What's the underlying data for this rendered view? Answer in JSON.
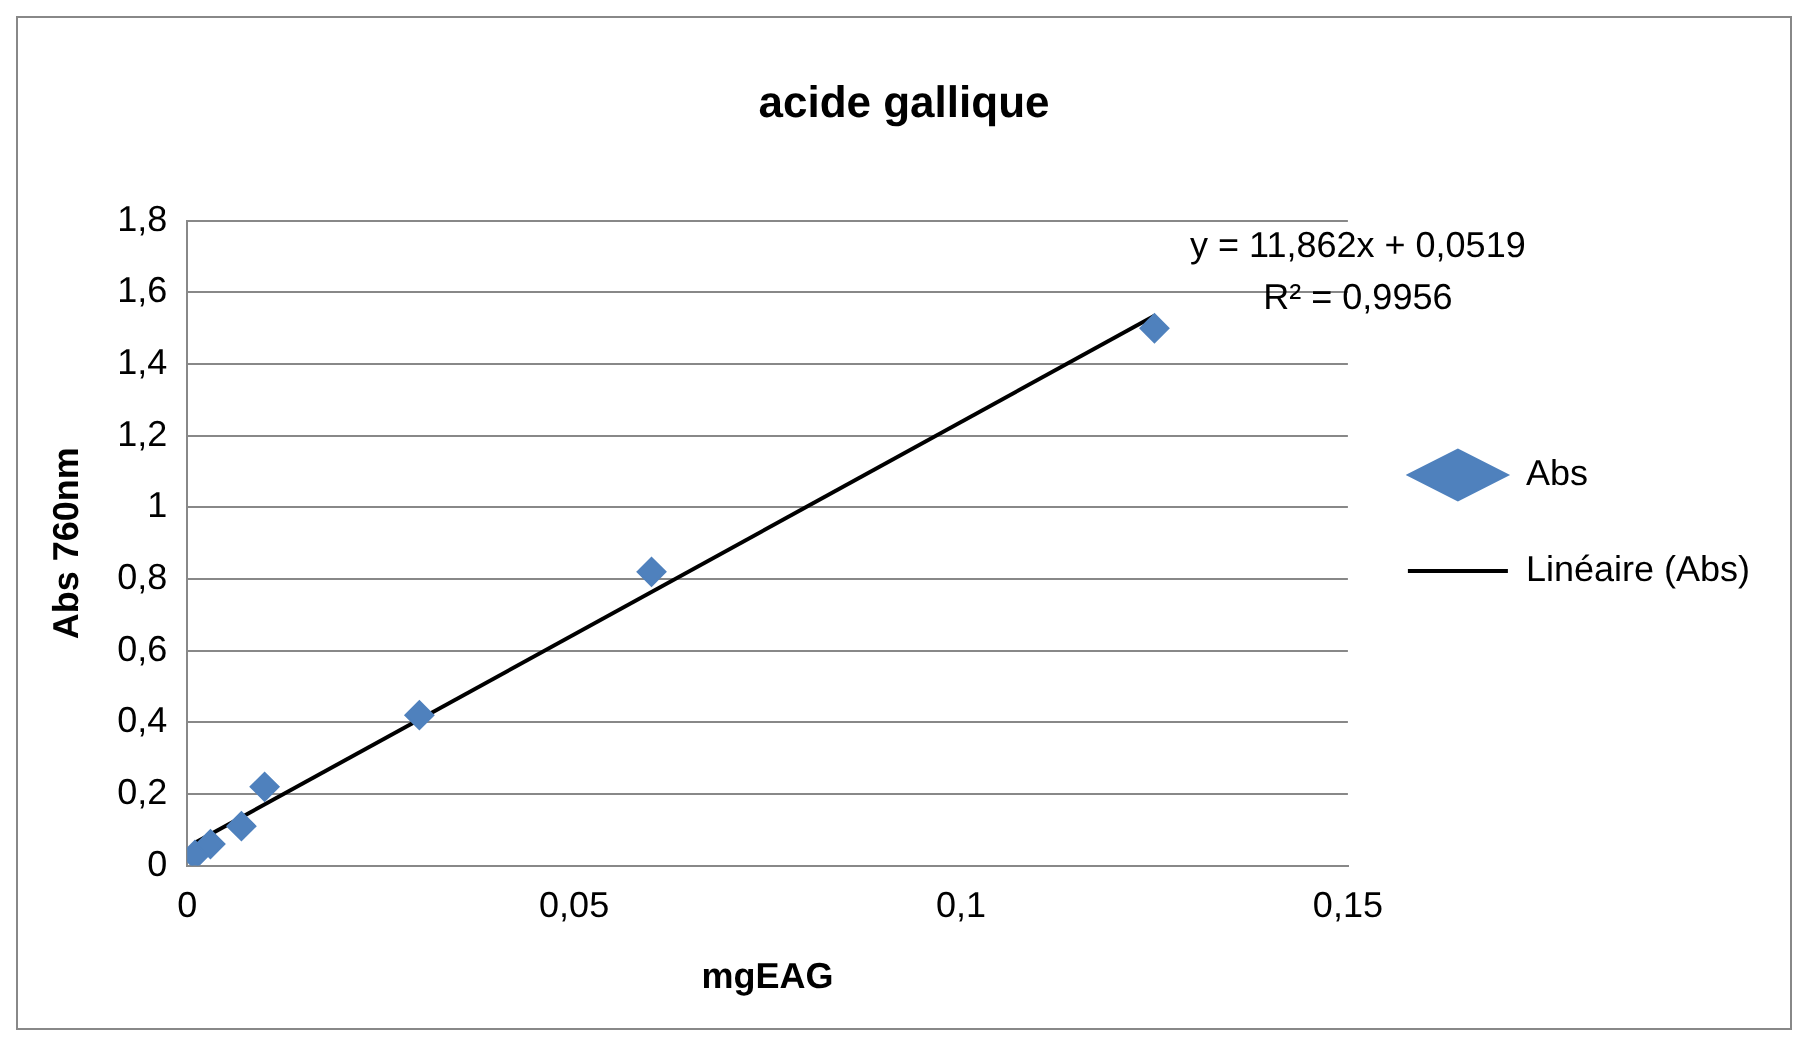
{
  "chart_data": {
    "type": "scatter",
    "title": "acide gallique",
    "xlabel": "mgEAG",
    "ylabel": "Abs 760nm",
    "annotations": [
      "y = 11,862x + 0,0519",
      "R² = 0,9956"
    ],
    "series": [
      {
        "name": "Abs",
        "type": "scatter",
        "color": "#4f81bd",
        "marker": "diamond",
        "x": [
          0.001,
          0.003,
          0.007,
          0.01,
          0.03,
          0.06,
          0.125
        ],
        "values": [
          0.03,
          0.06,
          0.11,
          0.22,
          0.42,
          0.82,
          1.5
        ]
      },
      {
        "name": "Linéaire (Abs)",
        "type": "line",
        "color": "#000000",
        "marker": "none",
        "line_style": "solid",
        "x": [
          0.001,
          0.125
        ],
        "values": [
          0.064,
          1.535
        ]
      }
    ],
    "xlim": [
      0,
      0.15
    ],
    "xticks": [
      0,
      {
        "value": 0.05,
        "label": "0,05"
      },
      {
        "value": 0.1,
        "label": "0,1"
      },
      {
        "value": 0.15,
        "label": "0,15"
      }
    ],
    "ylim": [
      0,
      1.8
    ],
    "yticks": [
      0,
      {
        "value": 0.2,
        "label": "0,2"
      },
      {
        "value": 0.4,
        "label": "0,4"
      },
      {
        "value": 0.6,
        "label": "0,6"
      },
      {
        "value": 0.8,
        "label": "0,8"
      },
      1,
      {
        "value": 1.2,
        "label": "1,2"
      },
      {
        "value": 1.4,
        "label": "1,4"
      },
      {
        "value": 1.6,
        "label": "1,6"
      },
      {
        "value": 1.8,
        "label": "1,8"
      }
    ],
    "grid": "y",
    "legend": "right"
  }
}
